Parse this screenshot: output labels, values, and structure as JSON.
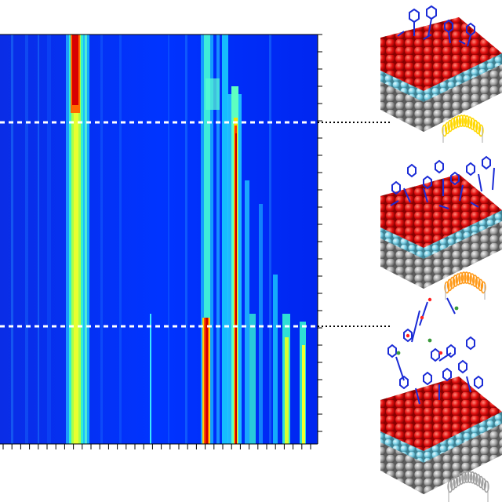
{
  "figure": {
    "heatmap": {
      "colormap": [
        "#0000c8",
        "#0032ff",
        "#00b4ff",
        "#36ffd0",
        "#c8ff36",
        "#ffe600",
        "#ff5a00",
        "#d80000"
      ],
      "dashed_line_color": "#ffffff",
      "dashed_markers": 2,
      "bands": [
        {
          "id": "b1",
          "intensity": 0.45
        },
        {
          "id": "b2",
          "intensity": 0.95
        },
        {
          "id": "b3",
          "intensity": 0.55
        },
        {
          "id": "b4",
          "intensity": 0.35
        },
        {
          "id": "b5",
          "intensity": 0.6
        },
        {
          "id": "b6",
          "intensity": 0.9
        },
        {
          "id": "b7",
          "intensity": 0.7
        },
        {
          "id": "b8",
          "intensity": 0.5
        }
      ]
    },
    "schematics": [
      {
        "name": "surface-sparse",
        "spring_color": "#ffd800"
      },
      {
        "name": "surface-dense",
        "spring_color": "#ff9a1a"
      },
      {
        "name": "surface-desorbing",
        "spring_color": "#a0a0a0"
      }
    ],
    "colors": {
      "top_layer": "#e01010",
      "bottom_layer": "#9a9a9a",
      "interface": "#7fd3e6",
      "molecule": "#1a2bd6"
    }
  }
}
